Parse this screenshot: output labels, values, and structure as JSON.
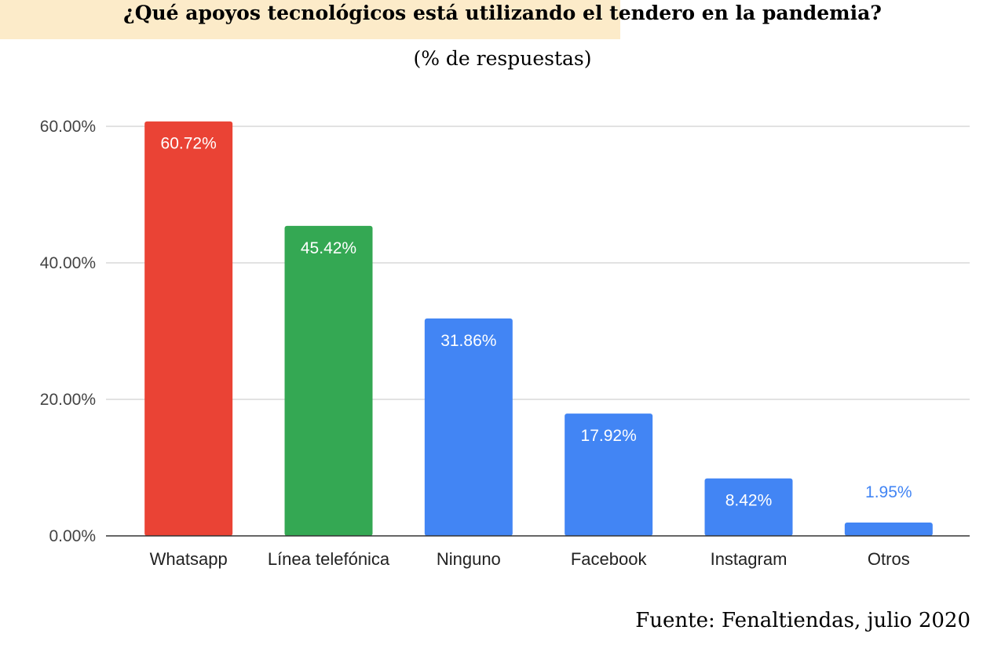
{
  "header": {
    "title": "¿Qué apoyos tecnológicos está utilizando el  tendero  en la  pandemia?",
    "subtitle": "(% de respuestas)"
  },
  "footer": {
    "source": "Fuente: Fenaltiendas, julio 2020"
  },
  "chart_data": {
    "type": "bar",
    "title": "¿Qué apoyos tecnológicos está utilizando el  tendero  en la  pandemia?",
    "subtitle": "(% de respuestas)",
    "categories": [
      "Whatsapp",
      "Línea telefónica",
      "Ninguno",
      "Facebook",
      "Instagram",
      "Otros"
    ],
    "values": [
      60.72,
      45.42,
      31.86,
      17.92,
      8.42,
      1.95
    ],
    "data_labels": [
      "60.72%",
      "45.42%",
      "31.86%",
      "17.92%",
      "8.42%",
      "1.95%"
    ],
    "bar_colors": [
      "#ea4335",
      "#34a853",
      "#4285f4",
      "#4285f4",
      "#4285f4",
      "#4285f4"
    ],
    "label_colors": [
      "#ffffff",
      "#ffffff",
      "#ffffff",
      "#ffffff",
      "#ffffff",
      "#4285f4"
    ],
    "ylim": [
      0,
      60
    ],
    "yticks": [
      0,
      20,
      40,
      60
    ],
    "ytick_labels": [
      "0.00%",
      "20.00%",
      "40.00%",
      "60.00%"
    ],
    "xlabel": "",
    "ylabel": "",
    "grid": true,
    "legend": "none",
    "gridline_color": "#d9d9d9",
    "axis_color": "#333333"
  }
}
